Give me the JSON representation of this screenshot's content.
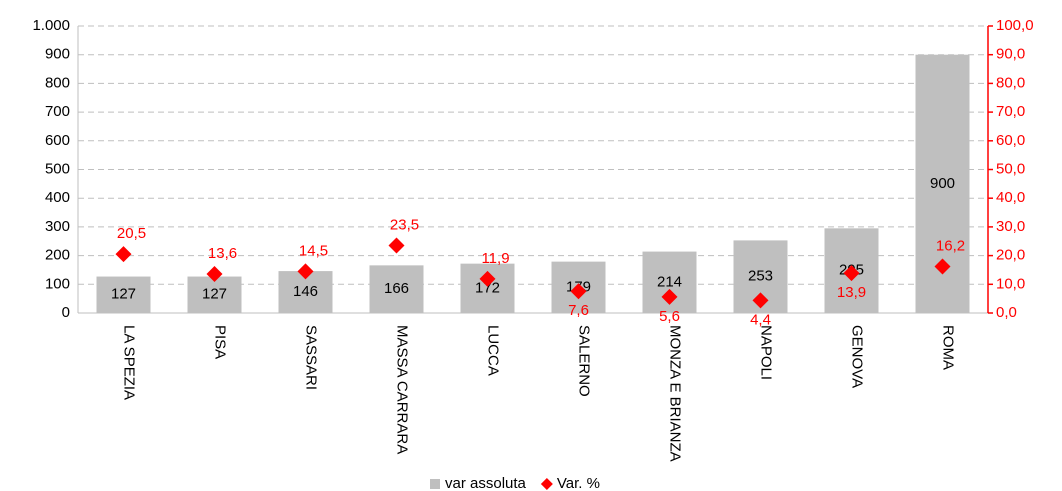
{
  "chart_data": {
    "type": "bar_scatter",
    "categories": [
      "LA SPEZIA",
      "PISA",
      "SASSARI",
      "MASSA CARRARA",
      "LUCCA",
      "SALERNO",
      "MONZA E BRIANZA",
      "NAPOLI",
      "GENOVA",
      "ROMA"
    ],
    "series": [
      {
        "name": "var assoluta",
        "type": "bar",
        "color": "#bfbfbf",
        "values": [
          127,
          127,
          146,
          166,
          172,
          179,
          214,
          253,
          295,
          900
        ]
      },
      {
        "name": "Var. %",
        "type": "scatter",
        "axis": "y2",
        "color": "#ff0000",
        "values": [
          20.5,
          13.6,
          14.5,
          23.5,
          11.9,
          7.6,
          5.6,
          4.4,
          13.9,
          16.2
        ],
        "value_labels": [
          "20,5",
          "13,6",
          "14,5",
          "23,5",
          "11,9",
          "7,6",
          "5,6",
          "4,4",
          "13,9",
          "16,2"
        ]
      }
    ],
    "ylim": [
      0,
      1000
    ],
    "yticks": [
      0,
      100,
      200,
      300,
      400,
      500,
      600,
      700,
      800,
      900,
      {
        "value": 1000,
        "label": "1.000"
      }
    ],
    "y2lim": [
      0,
      100
    ],
    "y2ticks": [
      {
        "value": 0,
        "label": "0,0"
      },
      {
        "value": 10,
        "label": "10,0"
      },
      {
        "value": 20,
        "label": "20,0"
      },
      {
        "value": 30,
        "label": "30,0"
      },
      {
        "value": 40,
        "label": "40,0"
      },
      {
        "value": 50,
        "label": "50,0"
      },
      {
        "value": 60,
        "label": "60,0"
      },
      {
        "value": 70,
        "label": "70,0"
      },
      {
        "value": 80,
        "label": "80,0"
      },
      {
        "value": 90,
        "label": "90,0"
      },
      {
        "value": 100,
        "label": "100,0"
      }
    ],
    "grid": true,
    "legend": "bottom"
  }
}
